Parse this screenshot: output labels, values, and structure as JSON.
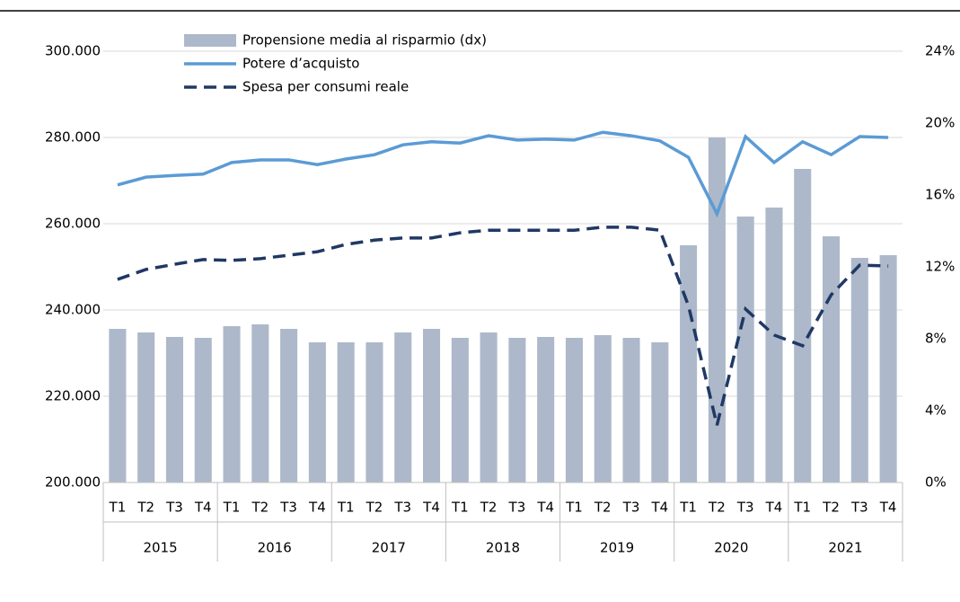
{
  "chart_data": {
    "type": "bar-line",
    "categories": [
      "T1",
      "T2",
      "T3",
      "T4",
      "T1",
      "T2",
      "T3",
      "T4",
      "T1",
      "T2",
      "T3",
      "T4",
      "T1",
      "T2",
      "T3",
      "T4",
      "T1",
      "T2",
      "T3",
      "T4",
      "T1",
      "T2",
      "T3",
      "T4",
      "T1",
      "T2",
      "T3",
      "T4"
    ],
    "groups": [
      "2015",
      "2016",
      "2017",
      "2018",
      "2019",
      "2020",
      "2021"
    ],
    "series": [
      {
        "name": "Propensione media al risparmio (dx)",
        "type": "bar",
        "axis": "y2",
        "color": "#adb9ca",
        "values": [
          8.55,
          8.35,
          8.1,
          8.05,
          8.7,
          8.8,
          8.55,
          7.8,
          7.8,
          7.8,
          8.35,
          8.55,
          8.05,
          8.35,
          8.05,
          8.1,
          8.05,
          8.2,
          8.05,
          7.8,
          13.2,
          19.2,
          14.8,
          15.3,
          17.45,
          13.7,
          12.5,
          12.65
        ]
      },
      {
        "name": "Potere d’acquisto",
        "type": "line",
        "color": "#5b9bd5",
        "values": [
          269000,
          270800,
          271200,
          271500,
          274200,
          274800,
          274800,
          273700,
          275000,
          276000,
          278300,
          279000,
          278700,
          280400,
          279400,
          279600,
          279400,
          281200,
          280400,
          279200,
          275400,
          262300,
          280200,
          274200,
          279000,
          276000,
          280200,
          280000
        ]
      },
      {
        "name": "Spesa per consumi reale",
        "type": "dashed",
        "color": "#203864",
        "values": [
          247100,
          249400,
          250600,
          251700,
          251500,
          251900,
          252700,
          253500,
          255200,
          256200,
          256700,
          256700,
          257900,
          258500,
          258500,
          258500,
          258500,
          259200,
          259200,
          258500,
          241000,
          213300,
          240200,
          234200,
          231700,
          243500,
          250400,
          250200
        ]
      }
    ],
    "ylim": [
      200000,
      300000
    ],
    "yticks": [
      {
        "value": 200000,
        "label": "200.000"
      },
      {
        "value": 220000,
        "label": "220.000"
      },
      {
        "value": 240000,
        "label": "240.000"
      },
      {
        "value": 260000,
        "label": "260.000"
      },
      {
        "value": 280000,
        "label": "280.000"
      },
      {
        "value": 300000,
        "label": "300.000"
      }
    ],
    "y2lim": [
      0,
      24
    ],
    "y2ticks": [
      {
        "value": 0,
        "label": "0%"
      },
      {
        "value": 4,
        "label": "4%"
      },
      {
        "value": 8,
        "label": "8%"
      },
      {
        "value": 12,
        "label": "12%"
      },
      {
        "value": 16,
        "label": "16%"
      },
      {
        "value": 20,
        "label": "20%"
      },
      {
        "value": 24,
        "label": "24%"
      }
    ],
    "grid": true
  }
}
